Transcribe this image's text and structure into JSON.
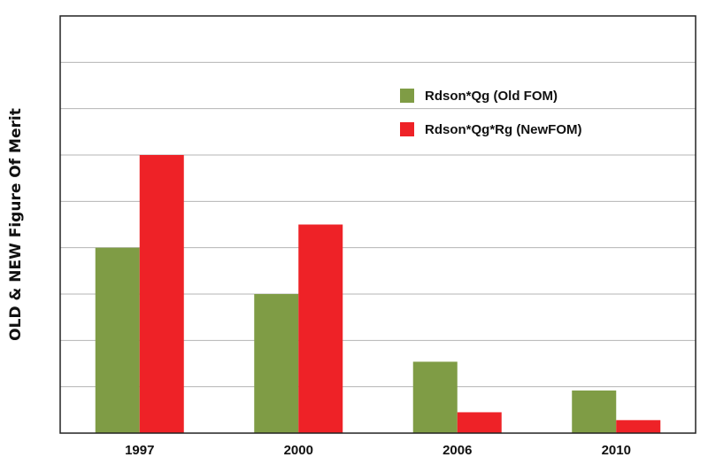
{
  "chart_data": {
    "type": "bar",
    "title": "",
    "xlabel": "",
    "ylabel": "OLD & NEW Figure Of Merit",
    "categories": [
      "1997",
      "2000",
      "2006",
      "2010"
    ],
    "series": [
      {
        "name": "Rdson*Qg (Old FOM)",
        "color": "#7f9c45",
        "values": [
          4.0,
          3.0,
          1.54,
          0.92
        ]
      },
      {
        "name": "Rdson*Qg*Rg (NewFOM)",
        "color": "#ee2227",
        "values": [
          6.0,
          4.5,
          0.45,
          0.28
        ]
      }
    ],
    "ylim": [
      0,
      9
    ],
    "grid": true,
    "legend_position": "top-right",
    "show_y_tick_labels": false
  }
}
